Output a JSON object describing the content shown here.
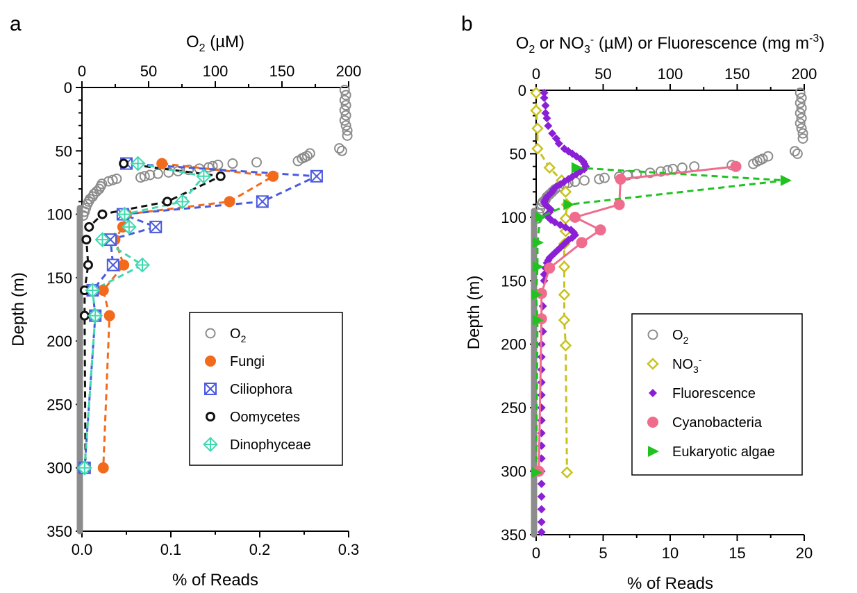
{
  "chart_data": [
    {
      "panel": "a",
      "type": "scatter",
      "top_axis": {
        "label_main": "O",
        "label_sub": "2",
        "label_rest": " (µM)",
        "range": [
          0,
          200
        ],
        "ticks": [
          0,
          50,
          100,
          150,
          200
        ]
      },
      "bottom_axis": {
        "label": "% of Reads",
        "range": [
          0,
          0.3
        ],
        "ticks": [
          0,
          0.1,
          0.2,
          0.3
        ],
        "tick_labels": [
          "0.0",
          "0.1",
          "0.2",
          "0.3"
        ]
      },
      "y_axis": {
        "label": "Depth (m)",
        "range": [
          0,
          350
        ],
        "ticks": [
          0,
          50,
          100,
          150,
          200,
          250,
          300,
          350
        ],
        "reversed": true
      },
      "legend": {
        "placement": "center-right",
        "entries": [
          {
            "key": "o2",
            "text": "O",
            "sub": "2"
          },
          {
            "key": "fungi",
            "text": "Fungi"
          },
          {
            "key": "cilio",
            "text": "Ciliophora"
          },
          {
            "key": "oomy",
            "text": "Oomycetes"
          },
          {
            "key": "dino",
            "text": "Dinophyceae"
          }
        ]
      },
      "colors": {
        "o2": "#8c8c8c",
        "fungi": "#f26a1b",
        "cilio": "#4a5ae0",
        "oomy": "#111111",
        "dino": "#3fd9b0"
      },
      "o2_profile": [
        [
          197,
          2
        ],
        [
          198,
          6
        ],
        [
          197,
          10
        ],
        [
          198,
          14
        ],
        [
          197,
          18
        ],
        [
          198,
          22
        ],
        [
          197,
          26
        ],
        [
          198,
          30
        ],
        [
          199,
          34
        ],
        [
          199,
          38
        ],
        [
          193,
          48
        ],
        [
          195,
          50
        ],
        [
          171,
          52
        ],
        [
          169,
          54
        ],
        [
          167,
          55
        ],
        [
          165,
          56
        ],
        [
          162,
          58
        ],
        [
          131,
          59
        ],
        [
          113,
          60
        ],
        [
          102,
          61
        ],
        [
          98,
          62
        ],
        [
          95,
          63
        ],
        [
          88,
          64
        ],
        [
          80,
          65
        ],
        [
          72,
          66
        ],
        [
          65,
          67
        ],
        [
          57,
          68
        ],
        [
          51,
          69
        ],
        [
          47,
          70
        ],
        [
          44,
          71
        ],
        [
          26,
          72
        ],
        [
          23,
          73
        ],
        [
          20,
          74
        ],
        [
          15,
          76
        ],
        [
          14,
          78
        ],
        [
          13,
          80
        ],
        [
          11,
          82
        ],
        [
          9,
          84
        ],
        [
          8,
          86
        ],
        [
          6,
          88
        ],
        [
          5,
          90
        ],
        [
          4,
          92
        ],
        [
          3,
          95
        ],
        [
          2,
          98
        ],
        [
          1,
          101
        ]
      ],
      "o2_band": {
        "x": 0,
        "from_depth": 95,
        "to_depth": 350
      },
      "series": [
        {
          "key": "fungi",
          "points": [
            [
              0.09,
              60
            ],
            [
              0.215,
              70
            ],
            [
              0.166,
              90
            ],
            [
              0.05,
              100
            ],
            [
              0.046,
              110
            ],
            [
              0.037,
              120
            ],
            [
              0.047,
              140
            ],
            [
              0.024,
              160
            ],
            [
              0.031,
              180
            ],
            [
              0.024,
              300
            ]
          ]
        },
        {
          "key": "cilio",
          "points": [
            [
              0.05,
              60
            ],
            [
              0.264,
              70
            ],
            [
              0.203,
              90
            ],
            [
              0.046,
              100
            ],
            [
              0.083,
              110
            ],
            [
              0.032,
              120
            ],
            [
              0.035,
              140
            ],
            [
              0.012,
              160
            ],
            [
              0.015,
              180
            ],
            [
              0.003,
              300
            ]
          ]
        },
        {
          "key": "oomy",
          "points": [
            [
              0.047,
              60
            ],
            [
              0.156,
              70
            ],
            [
              0.096,
              90
            ],
            [
              0.023,
              100
            ],
            [
              0.008,
              110
            ],
            [
              0.005,
              120
            ],
            [
              0.007,
              140
            ],
            [
              0.003,
              160
            ],
            [
              0.003,
              180
            ],
            [
              0.004,
              300
            ]
          ]
        },
        {
          "key": "dino",
          "points": [
            [
              0.063,
              60
            ],
            [
              0.137,
              70
            ],
            [
              0.113,
              90
            ],
            [
              0.048,
              100
            ],
            [
              0.053,
              110
            ],
            [
              0.023,
              120
            ],
            [
              0.068,
              140
            ],
            [
              0.012,
              160
            ],
            [
              0.015,
              180
            ],
            [
              0.003,
              300
            ]
          ]
        }
      ]
    },
    {
      "panel": "b",
      "type": "scatter",
      "top_axis": {
        "label_html": true,
        "parts": [
          "O",
          "2",
          " or NO",
          "3",
          "-",
          " (µM) or Fluorescence (mg m",
          "-3",
          ")"
        ],
        "range": [
          0,
          200
        ],
        "ticks": [
          0,
          50,
          100,
          150,
          200
        ]
      },
      "bottom_axis": {
        "label": "% of Reads",
        "range": [
          0,
          20
        ],
        "ticks": [
          0,
          5,
          10,
          15,
          20
        ],
        "tick_labels": [
          "0",
          "5",
          "10",
          "15",
          "20"
        ]
      },
      "y_axis": {
        "label": "Depth (m)",
        "range": [
          0,
          350
        ],
        "ticks": [
          0,
          50,
          100,
          150,
          200,
          250,
          300,
          350
        ],
        "reversed": true
      },
      "legend": {
        "placement": "bottom-right",
        "entries": [
          {
            "key": "o2",
            "text": "O",
            "sub": "2"
          },
          {
            "key": "no3",
            "text": "NO",
            "sub": "3",
            "sup": "-"
          },
          {
            "key": "fluor",
            "text": "Fluorescence"
          },
          {
            "key": "cyano",
            "text": "Cyanobacteria"
          },
          {
            "key": "euk",
            "text": "Eukaryotic algae"
          }
        ]
      },
      "colors": {
        "o2": "#8c8c8c",
        "no3": "#c8c21e",
        "fluor": "#8a1fd6",
        "cyano": "#f06c8c",
        "euk": "#1fc21f"
      },
      "o2_profile": [
        [
          197,
          2
        ],
        [
          198,
          6
        ],
        [
          197,
          10
        ],
        [
          198,
          14
        ],
        [
          197,
          18
        ],
        [
          198,
          22
        ],
        [
          197,
          26
        ],
        [
          198,
          30
        ],
        [
          199,
          34
        ],
        [
          199,
          38
        ],
        [
          193,
          48
        ],
        [
          195,
          50
        ],
        [
          173,
          52
        ],
        [
          169,
          54
        ],
        [
          167,
          55
        ],
        [
          165,
          56
        ],
        [
          162,
          58
        ],
        [
          146,
          59
        ],
        [
          118,
          60
        ],
        [
          109,
          61
        ],
        [
          102,
          62
        ],
        [
          98,
          63
        ],
        [
          93,
          64
        ],
        [
          85,
          65
        ],
        [
          75,
          66
        ],
        [
          68,
          67
        ],
        [
          62,
          68
        ],
        [
          51,
          69
        ],
        [
          47,
          70
        ],
        [
          36,
          71
        ],
        [
          29,
          72
        ],
        [
          24,
          73
        ],
        [
          21,
          74
        ],
        [
          17,
          76
        ],
        [
          14,
          78
        ],
        [
          12,
          80
        ],
        [
          10,
          82
        ],
        [
          8,
          84
        ],
        [
          7,
          86
        ],
        [
          5,
          88
        ],
        [
          4,
          90
        ],
        [
          3,
          93
        ],
        [
          2,
          97
        ],
        [
          1,
          101
        ]
      ],
      "o2_band": {
        "x": 0,
        "from_depth": 95,
        "to_depth": 350
      },
      "no3": [
        [
          0,
          2
        ],
        [
          0,
          16
        ],
        [
          1,
          30
        ],
        [
          1,
          46
        ],
        [
          10,
          61
        ],
        [
          19,
          71
        ],
        [
          22,
          80
        ],
        [
          23,
          90
        ],
        [
          22,
          101
        ],
        [
          22,
          111
        ],
        [
          21,
          121
        ],
        [
          21,
          139
        ],
        [
          21,
          161
        ],
        [
          21,
          181
        ],
        [
          22,
          201
        ],
        [
          23,
          301
        ]
      ],
      "fluor": [
        [
          6,
          2
        ],
        [
          6,
          6
        ],
        [
          7,
          12
        ],
        [
          7,
          18
        ],
        [
          8,
          22
        ],
        [
          9,
          28
        ],
        [
          12,
          34
        ],
        [
          15,
          38
        ],
        [
          17,
          42
        ],
        [
          21,
          46
        ],
        [
          24,
          48
        ],
        [
          27,
          50
        ],
        [
          30,
          52
        ],
        [
          33,
          54
        ],
        [
          35,
          56
        ],
        [
          36,
          58
        ],
        [
          37,
          60
        ],
        [
          36,
          62
        ],
        [
          33,
          64
        ],
        [
          30,
          66
        ],
        [
          27,
          68
        ],
        [
          24,
          70
        ],
        [
          21,
          72
        ],
        [
          18,
          74
        ],
        [
          15,
          76
        ],
        [
          13,
          78
        ],
        [
          12,
          80
        ],
        [
          10,
          82
        ],
        [
          8,
          84
        ],
        [
          7,
          86
        ],
        [
          6,
          88
        ],
        [
          7,
          90
        ],
        [
          9,
          92
        ],
        [
          11,
          94
        ],
        [
          10,
          96
        ],
        [
          8,
          98
        ],
        [
          9,
          100
        ],
        [
          11,
          102
        ],
        [
          14,
          104
        ],
        [
          18,
          106
        ],
        [
          22,
          108
        ],
        [
          26,
          110
        ],
        [
          28,
          112
        ],
        [
          29,
          114
        ],
        [
          27,
          116
        ],
        [
          24,
          118
        ],
        [
          22,
          120
        ],
        [
          20,
          122
        ],
        [
          18,
          124
        ],
        [
          16,
          126
        ],
        [
          14,
          128
        ],
        [
          12,
          130
        ],
        [
          10,
          132
        ],
        [
          9,
          134
        ],
        [
          8,
          136
        ],
        [
          7,
          140
        ],
        [
          6,
          145
        ],
        [
          6,
          150
        ],
        [
          5,
          160
        ],
        [
          5,
          170
        ],
        [
          5,
          180
        ],
        [
          5,
          190
        ],
        [
          4,
          200
        ],
        [
          4,
          210
        ],
        [
          4,
          220
        ],
        [
          4,
          230
        ],
        [
          4,
          240
        ],
        [
          4,
          250
        ],
        [
          4,
          260
        ],
        [
          4,
          270
        ],
        [
          4,
          280
        ],
        [
          4,
          290
        ],
        [
          4,
          300
        ],
        [
          4,
          310
        ],
        [
          4,
          320
        ],
        [
          4,
          330
        ],
        [
          4,
          340
        ],
        [
          4,
          348
        ]
      ],
      "series": [
        {
          "key": "cyano",
          "points": [
            [
              14.9,
              60
            ],
            [
              6.3,
              70
            ],
            [
              6.2,
              90
            ],
            [
              2.9,
              100
            ],
            [
              4.8,
              110
            ],
            [
              3.4,
              120
            ],
            [
              1.0,
              140
            ],
            [
              0.4,
              160
            ],
            [
              0.4,
              180
            ],
            [
              0.2,
              300
            ]
          ]
        },
        {
          "key": "euk",
          "points": [
            [
              3.0,
              61
            ],
            [
              18.6,
              71
            ],
            [
              2.4,
              90
            ],
            [
              0.3,
              100
            ],
            [
              0.1,
              120
            ],
            [
              0.1,
              139
            ],
            [
              0.0,
              161
            ],
            [
              0.1,
              181
            ],
            [
              0.0,
              301
            ]
          ]
        }
      ]
    }
  ]
}
